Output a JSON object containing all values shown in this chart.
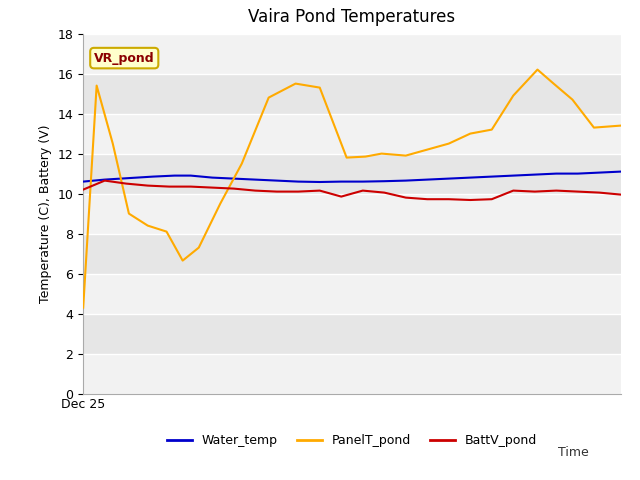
{
  "title": "Vaira Pond Temperatures",
  "ylabel": "Temperature (C), Battery (V)",
  "xlabel": "Time",
  "xlim": [
    0,
    1
  ],
  "ylim": [
    0,
    18
  ],
  "yticks": [
    0,
    2,
    4,
    6,
    8,
    10,
    12,
    14,
    16,
    18
  ],
  "x_label_text": "Dec 25",
  "annotation_text": "VR_pond",
  "outer_bg": "#ffffff",
  "plot_bg_color": "#e8e8e8",
  "band_light": "#f0f0f0",
  "band_dark": "#e0e0e0",
  "water_temp_color": "#0000cc",
  "panel_temp_color": "#ffaa00",
  "batt_v_color": "#cc0000",
  "water_temp_x": [
    0.0,
    0.04,
    0.07,
    0.1,
    0.13,
    0.17,
    0.2,
    0.24,
    0.28,
    0.32,
    0.36,
    0.4,
    0.44,
    0.48,
    0.52,
    0.56,
    0.6,
    0.64,
    0.68,
    0.72,
    0.76,
    0.8,
    0.84,
    0.88,
    0.92,
    0.96,
    1.0
  ],
  "water_temp_y": [
    10.6,
    10.7,
    10.75,
    10.8,
    10.85,
    10.9,
    10.9,
    10.8,
    10.75,
    10.7,
    10.65,
    10.6,
    10.58,
    10.6,
    10.6,
    10.62,
    10.65,
    10.7,
    10.75,
    10.8,
    10.85,
    10.9,
    10.95,
    11.0,
    11.0,
    11.05,
    11.1
  ],
  "panel_temp_x": [
    0.0,
    0.025,
    0.055,
    0.085,
    0.12,
    0.155,
    0.185,
    0.215,
    0.255,
    0.295,
    0.345,
    0.395,
    0.44,
    0.49,
    0.525,
    0.555,
    0.6,
    0.64,
    0.68,
    0.72,
    0.76,
    0.8,
    0.845,
    0.875,
    0.91,
    0.95,
    1.0
  ],
  "panel_temp_y": [
    4.3,
    15.4,
    12.5,
    9.0,
    8.4,
    8.1,
    6.65,
    7.3,
    9.5,
    11.5,
    14.8,
    15.5,
    15.3,
    11.8,
    11.85,
    12.0,
    11.9,
    12.2,
    12.5,
    13.0,
    13.2,
    14.9,
    16.2,
    15.5,
    14.7,
    13.3,
    13.4
  ],
  "batt_v_x": [
    0.0,
    0.04,
    0.08,
    0.12,
    0.16,
    0.2,
    0.24,
    0.28,
    0.32,
    0.36,
    0.4,
    0.44,
    0.48,
    0.52,
    0.56,
    0.6,
    0.64,
    0.68,
    0.72,
    0.76,
    0.8,
    0.84,
    0.88,
    0.92,
    0.96,
    1.0
  ],
  "batt_v_y": [
    10.2,
    10.65,
    10.5,
    10.4,
    10.35,
    10.35,
    10.3,
    10.25,
    10.15,
    10.1,
    10.1,
    10.15,
    9.85,
    10.15,
    10.05,
    9.8,
    9.72,
    9.72,
    9.68,
    9.72,
    10.15,
    10.1,
    10.15,
    10.1,
    10.05,
    9.95
  ],
  "legend_labels": [
    "Water_temp",
    "PanelT_pond",
    "BattV_pond"
  ],
  "legend_colors": [
    "#0000cc",
    "#ffaa00",
    "#cc0000"
  ],
  "title_fontsize": 12,
  "axis_fontsize": 9,
  "tick_fontsize": 9,
  "legend_fontsize": 9
}
